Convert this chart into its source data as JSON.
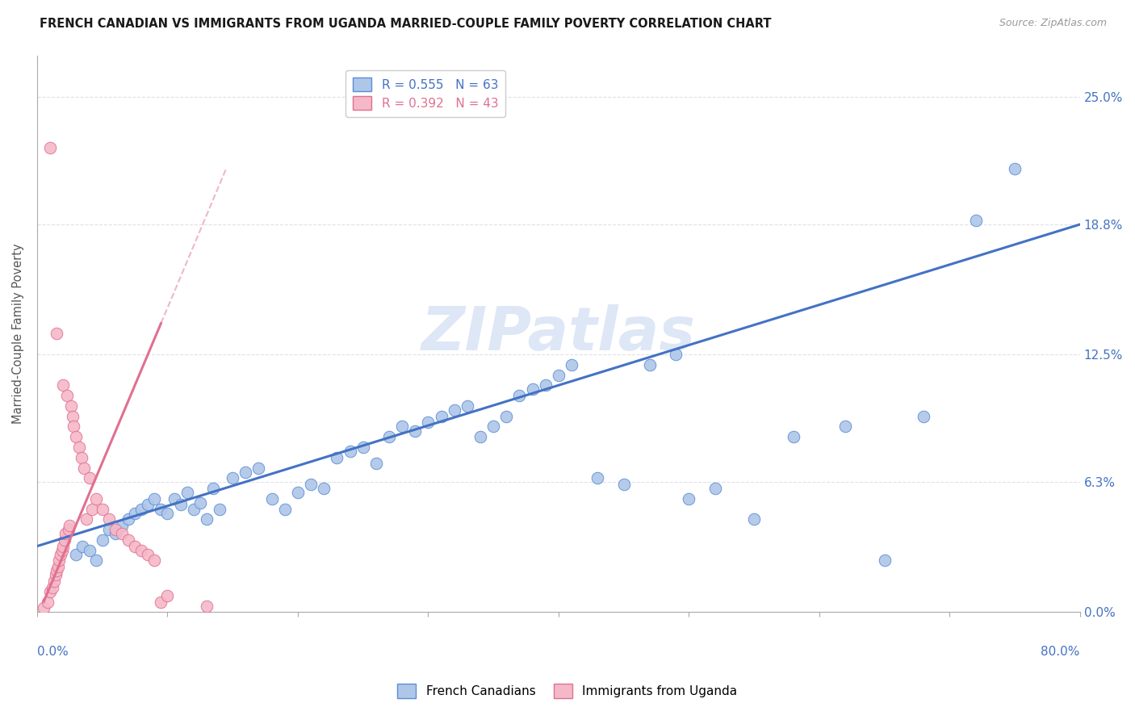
{
  "title": "FRENCH CANADIAN VS IMMIGRANTS FROM UGANDA MARRIED-COUPLE FAMILY POVERTY CORRELATION CHART",
  "source": "Source: ZipAtlas.com",
  "ylabel": "Married-Couple Family Poverty",
  "ytick_values": [
    0.0,
    6.3,
    12.5,
    18.8,
    25.0
  ],
  "xlim": [
    0.0,
    80.0
  ],
  "ylim": [
    0.0,
    27.0
  ],
  "legend_r1": "R = 0.555",
  "legend_n1": "N = 63",
  "legend_r2": "R = 0.392",
  "legend_n2": "N = 43",
  "color_blue_fill": "#aec6e8",
  "color_blue_edge": "#5b8ed6",
  "color_pink_fill": "#f5b8c8",
  "color_pink_edge": "#e07090",
  "color_blue_line": "#4472c4",
  "color_pink_line": "#e07090",
  "watermark": "ZIPatlas",
  "watermark_color": "#c8d8f0",
  "blue_scatter_x": [
    3.0,
    3.5,
    4.0,
    4.5,
    5.0,
    5.5,
    6.0,
    6.5,
    7.0,
    7.5,
    8.0,
    8.5,
    9.0,
    9.5,
    10.0,
    10.5,
    11.0,
    11.5,
    12.0,
    12.5,
    13.0,
    13.5,
    14.0,
    15.0,
    16.0,
    17.0,
    18.0,
    19.0,
    20.0,
    21.0,
    22.0,
    23.0,
    24.0,
    25.0,
    26.0,
    27.0,
    28.0,
    29.0,
    30.0,
    31.0,
    32.0,
    33.0,
    34.0,
    35.0,
    36.0,
    37.0,
    38.0,
    39.0,
    40.0,
    41.0,
    43.0,
    45.0,
    47.0,
    49.0,
    50.0,
    52.0,
    55.0,
    58.0,
    62.0,
    65.0,
    68.0,
    72.0,
    75.0
  ],
  "blue_scatter_y": [
    2.8,
    3.2,
    3.0,
    2.5,
    3.5,
    4.0,
    3.8,
    4.2,
    4.5,
    4.8,
    5.0,
    5.2,
    5.5,
    5.0,
    4.8,
    5.5,
    5.2,
    5.8,
    5.0,
    5.3,
    4.5,
    6.0,
    5.0,
    6.5,
    6.8,
    7.0,
    5.5,
    5.0,
    5.8,
    6.2,
    6.0,
    7.5,
    7.8,
    8.0,
    7.2,
    8.5,
    9.0,
    8.8,
    9.2,
    9.5,
    9.8,
    10.0,
    8.5,
    9.0,
    9.5,
    10.5,
    10.8,
    11.0,
    11.5,
    12.0,
    6.5,
    6.2,
    12.0,
    12.5,
    5.5,
    6.0,
    4.5,
    8.5,
    9.0,
    2.5,
    9.5,
    19.0,
    21.5
  ],
  "pink_scatter_x": [
    0.5,
    0.8,
    1.0,
    1.0,
    1.2,
    1.3,
    1.4,
    1.5,
    1.5,
    1.6,
    1.7,
    1.8,
    1.9,
    2.0,
    2.0,
    2.1,
    2.2,
    2.3,
    2.4,
    2.5,
    2.6,
    2.7,
    2.8,
    3.0,
    3.2,
    3.4,
    3.6,
    3.8,
    4.0,
    4.2,
    4.5,
    5.0,
    5.5,
    6.0,
    6.5,
    7.0,
    7.5,
    8.0,
    8.5,
    9.0,
    9.5,
    10.0,
    13.0
  ],
  "pink_scatter_y": [
    0.2,
    0.5,
    1.0,
    22.5,
    1.2,
    1.5,
    1.8,
    2.0,
    13.5,
    2.2,
    2.5,
    2.8,
    3.0,
    3.2,
    11.0,
    3.5,
    3.8,
    10.5,
    4.0,
    4.2,
    10.0,
    9.5,
    9.0,
    8.5,
    8.0,
    7.5,
    7.0,
    4.5,
    6.5,
    5.0,
    5.5,
    5.0,
    4.5,
    4.0,
    3.8,
    3.5,
    3.2,
    3.0,
    2.8,
    2.5,
    0.5,
    0.8,
    0.3
  ],
  "blue_line_x0": 0.0,
  "blue_line_y0": 3.2,
  "blue_line_x1": 80.0,
  "blue_line_y1": 18.8,
  "pink_line_x0": 0.5,
  "pink_line_y0": 0.5,
  "pink_line_x1": 9.5,
  "pink_line_y1": 14.0,
  "pink_dash_x0": 9.5,
  "pink_dash_y0": 14.0,
  "pink_dash_x1": 14.5,
  "pink_dash_y1": 21.5
}
